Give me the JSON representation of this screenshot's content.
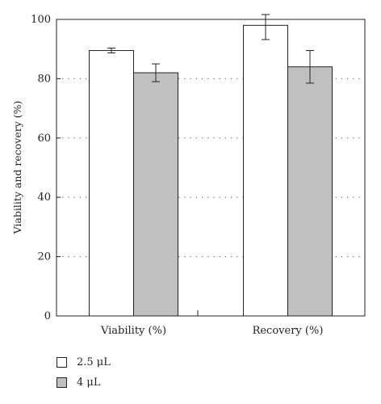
{
  "chart_data": {
    "type": "bar",
    "ylabel": "Viability and recovery (%)",
    "ylim": [
      0,
      100
    ],
    "yticks": [
      0,
      20,
      40,
      60,
      80,
      100
    ],
    "categories": [
      "Viability (%)",
      "Recovery (%)"
    ],
    "grid": "horizontal dotted",
    "legend_position": "bottom-left",
    "series": [
      {
        "name": "2.5 μL",
        "color": "#ffffff",
        "values": [
          89.5,
          98.0
        ],
        "errors": [
          0.8,
          4.8
        ]
      },
      {
        "name": "4 μL",
        "color": "#c0c0c0",
        "values": [
          82.0,
          84.0
        ],
        "errors": [
          3.0,
          5.5
        ]
      }
    ]
  },
  "legend": {
    "items": [
      {
        "label": "2.5 μL",
        "color": "#ffffff"
      },
      {
        "label": "4 μL",
        "color": "#c0c0c0"
      }
    ]
  }
}
